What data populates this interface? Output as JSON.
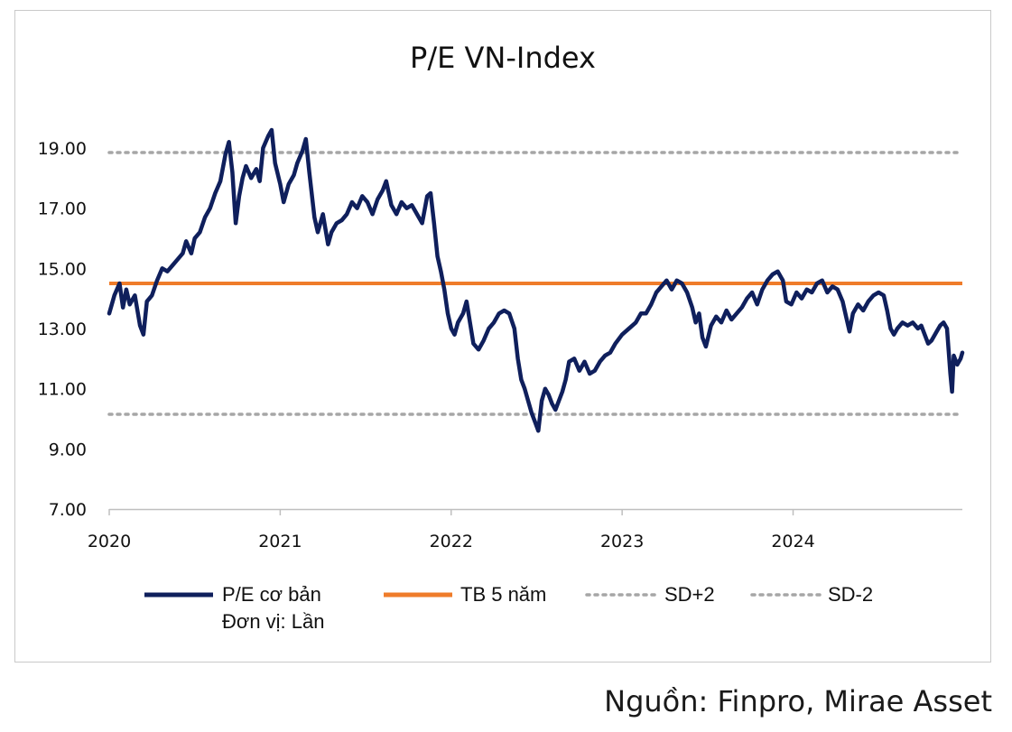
{
  "source_note": "Nguồn: Finpro, Mirae Asset",
  "chart_data": {
    "type": "line",
    "title": "P/E VN-Index",
    "xlabel": "",
    "ylabel": "",
    "ylim": [
      7,
      19.9
    ],
    "xlim": [
      2020.0,
      2024.99
    ],
    "yticks": [
      "7.00",
      "9.00",
      "11.00",
      "13.00",
      "15.00",
      "17.00",
      "19.00"
    ],
    "xticks": [
      "2020",
      "2021",
      "2022",
      "2023",
      "2024"
    ],
    "grid": false,
    "legend_position": "bottom",
    "legend": {
      "series_label": "P/E cơ bản",
      "unit_note": "Đơn vị: Lần",
      "mean_label": "TB 5 năm",
      "upper_label": "SD+2",
      "lower_label": "SD-2"
    },
    "colors": {
      "series": "#0f1f5c",
      "mean": "#ef7c2a",
      "bands": "#a6a6a6"
    },
    "reference_lines": {
      "mean": 14.5,
      "upper": 18.85,
      "lower": 10.15
    },
    "series": [
      {
        "name": "P/E cơ bản",
        "points": [
          [
            2020.0,
            13.5
          ],
          [
            2020.03,
            14.1
          ],
          [
            2020.06,
            14.5
          ],
          [
            2020.08,
            13.7
          ],
          [
            2020.1,
            14.3
          ],
          [
            2020.12,
            13.8
          ],
          [
            2020.15,
            14.1
          ],
          [
            2020.18,
            13.1
          ],
          [
            2020.2,
            12.8
          ],
          [
            2020.22,
            13.9
          ],
          [
            2020.25,
            14.1
          ],
          [
            2020.28,
            14.6
          ],
          [
            2020.31,
            15.0
          ],
          [
            2020.34,
            14.9
          ],
          [
            2020.37,
            15.1
          ],
          [
            2020.4,
            15.3
          ],
          [
            2020.43,
            15.5
          ],
          [
            2020.45,
            15.9
          ],
          [
            2020.48,
            15.5
          ],
          [
            2020.5,
            16.0
          ],
          [
            2020.53,
            16.2
          ],
          [
            2020.56,
            16.7
          ],
          [
            2020.59,
            17.0
          ],
          [
            2020.62,
            17.5
          ],
          [
            2020.65,
            17.9
          ],
          [
            2020.68,
            18.8
          ],
          [
            2020.7,
            19.2
          ],
          [
            2020.72,
            18.2
          ],
          [
            2020.74,
            16.5
          ],
          [
            2020.76,
            17.4
          ],
          [
            2020.78,
            18.0
          ],
          [
            2020.8,
            18.4
          ],
          [
            2020.83,
            18.0
          ],
          [
            2020.86,
            18.3
          ],
          [
            2020.88,
            17.9
          ],
          [
            2020.9,
            19.0
          ],
          [
            2020.93,
            19.4
          ],
          [
            2020.95,
            19.6
          ],
          [
            2020.97,
            18.5
          ],
          [
            2021.0,
            17.8
          ],
          [
            2021.02,
            17.2
          ],
          [
            2021.05,
            17.8
          ],
          [
            2021.08,
            18.1
          ],
          [
            2021.1,
            18.5
          ],
          [
            2021.13,
            18.9
          ],
          [
            2021.15,
            19.3
          ],
          [
            2021.17,
            18.2
          ],
          [
            2021.2,
            16.7
          ],
          [
            2021.22,
            16.2
          ],
          [
            2021.25,
            16.8
          ],
          [
            2021.28,
            15.8
          ],
          [
            2021.3,
            16.2
          ],
          [
            2021.33,
            16.5
          ],
          [
            2021.36,
            16.6
          ],
          [
            2021.39,
            16.8
          ],
          [
            2021.42,
            17.2
          ],
          [
            2021.45,
            17.0
          ],
          [
            2021.48,
            17.4
          ],
          [
            2021.51,
            17.2
          ],
          [
            2021.54,
            16.8
          ],
          [
            2021.57,
            17.3
          ],
          [
            2021.6,
            17.6
          ],
          [
            2021.62,
            17.9
          ],
          [
            2021.65,
            17.1
          ],
          [
            2021.68,
            16.8
          ],
          [
            2021.71,
            17.2
          ],
          [
            2021.74,
            17.0
          ],
          [
            2021.77,
            17.1
          ],
          [
            2021.8,
            16.8
          ],
          [
            2021.83,
            16.5
          ],
          [
            2021.86,
            17.4
          ],
          [
            2021.88,
            17.5
          ],
          [
            2021.9,
            16.5
          ],
          [
            2021.92,
            15.4
          ],
          [
            2021.94,
            14.9
          ],
          [
            2021.96,
            14.3
          ],
          [
            2021.98,
            13.5
          ],
          [
            2022.0,
            13.0
          ],
          [
            2022.02,
            12.8
          ],
          [
            2022.04,
            13.2
          ],
          [
            2022.07,
            13.5
          ],
          [
            2022.09,
            13.9
          ],
          [
            2022.11,
            13.2
          ],
          [
            2022.13,
            12.5
          ],
          [
            2022.16,
            12.3
          ],
          [
            2022.19,
            12.6
          ],
          [
            2022.22,
            13.0
          ],
          [
            2022.25,
            13.2
          ],
          [
            2022.28,
            13.5
          ],
          [
            2022.31,
            13.6
          ],
          [
            2022.34,
            13.5
          ],
          [
            2022.37,
            13.0
          ],
          [
            2022.39,
            12.0
          ],
          [
            2022.41,
            11.3
          ],
          [
            2022.43,
            11.0
          ],
          [
            2022.45,
            10.6
          ],
          [
            2022.47,
            10.2
          ],
          [
            2022.49,
            9.9
          ],
          [
            2022.51,
            9.6
          ],
          [
            2022.53,
            10.6
          ],
          [
            2022.55,
            11.0
          ],
          [
            2022.57,
            10.8
          ],
          [
            2022.59,
            10.5
          ],
          [
            2022.61,
            10.3
          ],
          [
            2022.63,
            10.6
          ],
          [
            2022.65,
            10.9
          ],
          [
            2022.67,
            11.3
          ],
          [
            2022.69,
            11.9
          ],
          [
            2022.72,
            12.0
          ],
          [
            2022.75,
            11.6
          ],
          [
            2022.78,
            11.9
          ],
          [
            2022.81,
            11.5
          ],
          [
            2022.84,
            11.6
          ],
          [
            2022.87,
            11.9
          ],
          [
            2022.9,
            12.1
          ],
          [
            2022.93,
            12.2
          ],
          [
            2022.96,
            12.5
          ],
          [
            2023.0,
            12.8
          ],
          [
            2023.04,
            13.0
          ],
          [
            2023.08,
            13.2
          ],
          [
            2023.11,
            13.5
          ],
          [
            2023.14,
            13.5
          ],
          [
            2023.17,
            13.8
          ],
          [
            2023.2,
            14.2
          ],
          [
            2023.23,
            14.4
          ],
          [
            2023.26,
            14.6
          ],
          [
            2023.29,
            14.3
          ],
          [
            2023.32,
            14.6
          ],
          [
            2023.35,
            14.5
          ],
          [
            2023.38,
            14.2
          ],
          [
            2023.41,
            13.7
          ],
          [
            2023.43,
            13.2
          ],
          [
            2023.45,
            13.5
          ],
          [
            2023.47,
            12.7
          ],
          [
            2023.49,
            12.4
          ],
          [
            2023.52,
            13.1
          ],
          [
            2023.55,
            13.4
          ],
          [
            2023.58,
            13.2
          ],
          [
            2023.61,
            13.6
          ],
          [
            2023.64,
            13.3
          ],
          [
            2023.67,
            13.5
          ],
          [
            2023.7,
            13.7
          ],
          [
            2023.73,
            14.0
          ],
          [
            2023.76,
            14.2
          ],
          [
            2023.79,
            13.8
          ],
          [
            2023.82,
            14.3
          ],
          [
            2023.85,
            14.6
          ],
          [
            2023.88,
            14.8
          ],
          [
            2023.91,
            14.9
          ],
          [
            2023.94,
            14.6
          ],
          [
            2023.96,
            13.9
          ],
          [
            2023.99,
            13.8
          ],
          [
            2024.02,
            14.2
          ],
          [
            2024.05,
            14.0
          ],
          [
            2024.08,
            14.3
          ],
          [
            2024.11,
            14.2
          ],
          [
            2024.14,
            14.5
          ],
          [
            2024.17,
            14.6
          ],
          [
            2024.2,
            14.2
          ],
          [
            2024.23,
            14.4
          ],
          [
            2024.26,
            14.3
          ],
          [
            2024.29,
            13.9
          ],
          [
            2024.31,
            13.4
          ],
          [
            2024.33,
            12.9
          ],
          [
            2024.35,
            13.5
          ],
          [
            2024.38,
            13.8
          ],
          [
            2024.41,
            13.6
          ],
          [
            2024.44,
            13.9
          ],
          [
            2024.47,
            14.1
          ],
          [
            2024.5,
            14.2
          ],
          [
            2024.53,
            14.1
          ],
          [
            2024.55,
            13.6
          ],
          [
            2024.57,
            13.0
          ],
          [
            2024.59,
            12.8
          ],
          [
            2024.61,
            13.0
          ],
          [
            2024.64,
            13.2
          ],
          [
            2024.67,
            13.1
          ],
          [
            2024.7,
            13.2
          ],
          [
            2024.73,
            13.0
          ],
          [
            2024.75,
            13.1
          ],
          [
            2024.77,
            12.8
          ],
          [
            2024.79,
            12.5
          ],
          [
            2024.81,
            12.6
          ],
          [
            2024.84,
            12.9
          ],
          [
            2024.86,
            13.1
          ],
          [
            2024.88,
            13.2
          ],
          [
            2024.9,
            13.0
          ],
          [
            2024.92,
            11.5
          ],
          [
            2024.93,
            10.9
          ],
          [
            2024.94,
            12.1
          ],
          [
            2024.96,
            11.8
          ],
          [
            2024.98,
            12.0
          ],
          [
            2024.99,
            12.2
          ]
        ]
      }
    ]
  }
}
